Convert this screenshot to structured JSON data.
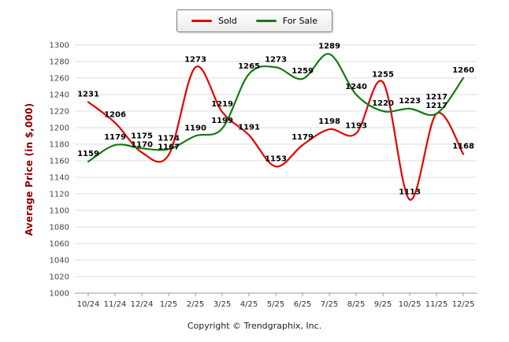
{
  "legend": {
    "items": [
      {
        "label": "Sold",
        "color": "#e60000"
      },
      {
        "label": "For Sale",
        "color": "#157a15"
      }
    ]
  },
  "chart_data": {
    "type": "line",
    "categories": [
      "10/24",
      "11/24",
      "12/24",
      "1/25",
      "2/25",
      "3/25",
      "4/25",
      "5/25",
      "6/25",
      "7/25",
      "8/25",
      "9/25",
      "10/25",
      "11/25",
      "12/25"
    ],
    "series": [
      {
        "name": "Sold",
        "color": "#e60000",
        "values": [
          1231,
          1206,
          1170,
          1167,
          1273,
          1219,
          1191,
          1153,
          1179,
          1198,
          1193,
          1255,
          1113,
          1217,
          1168
        ]
      },
      {
        "name": "For Sale",
        "color": "#157a15",
        "values": [
          1159,
          1179,
          1175,
          1174,
          1190,
          1199,
          1265,
          1273,
          1259,
          1289,
          1240,
          1220,
          1223,
          1217,
          1260
        ]
      }
    ],
    "title": "",
    "xlabel": "",
    "ylabel": "Average Price (in $,000)",
    "ylim": [
      1000,
      1300
    ],
    "ytick_step": 20,
    "grid": true,
    "legend_position": "top",
    "label_color": "#000000",
    "grid_color": "#dddddd",
    "axis_color": "#999999"
  },
  "footer": {
    "copyright": "Copyright © Trendgraphix, Inc."
  }
}
